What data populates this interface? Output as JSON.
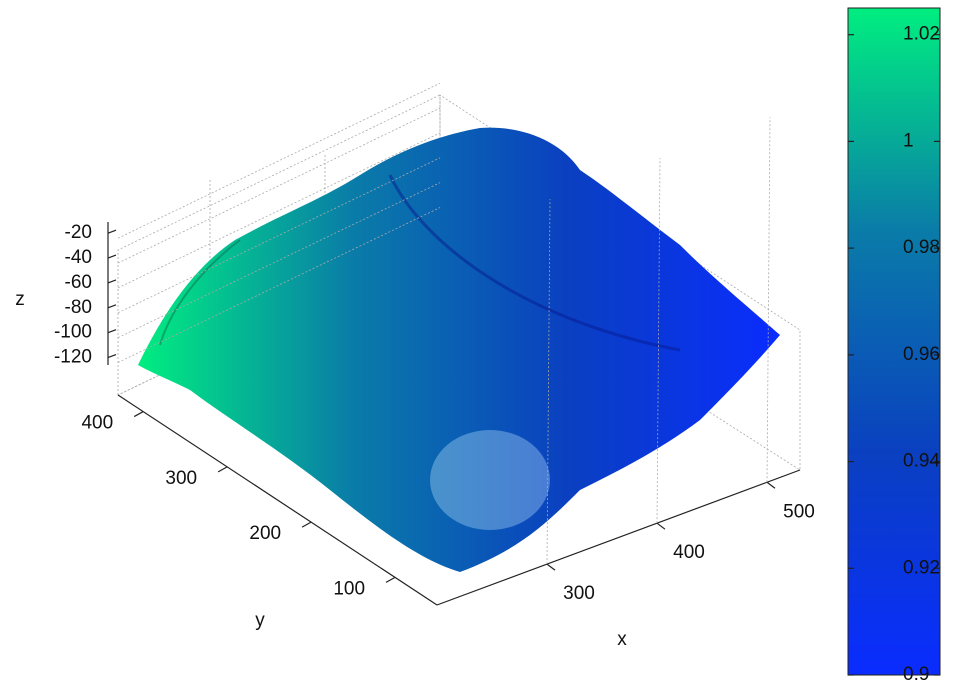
{
  "chart_data": {
    "type": "surface",
    "xlabel": "x",
    "ylabel": "y",
    "zlabel": "z",
    "xlim": [
      200,
      530
    ],
    "xticks": [
      300,
      400,
      500
    ],
    "ylim": [
      50,
      430
    ],
    "yticks": [
      100,
      200,
      300,
      400
    ],
    "zlim": [
      -126,
      -11
    ],
    "zticks": [
      -120,
      -100,
      -80,
      -60,
      -40,
      -20
    ],
    "grid": true,
    "colorbar": {
      "clim": [
        0.9,
        1.025
      ],
      "ticks": [
        0.9,
        0.92,
        0.94,
        0.96,
        0.98,
        1,
        1.02
      ],
      "colormap": [
        "#0a2cff",
        "#0a40c0",
        "#0a7ca8",
        "#00ee80"
      ]
    }
  }
}
